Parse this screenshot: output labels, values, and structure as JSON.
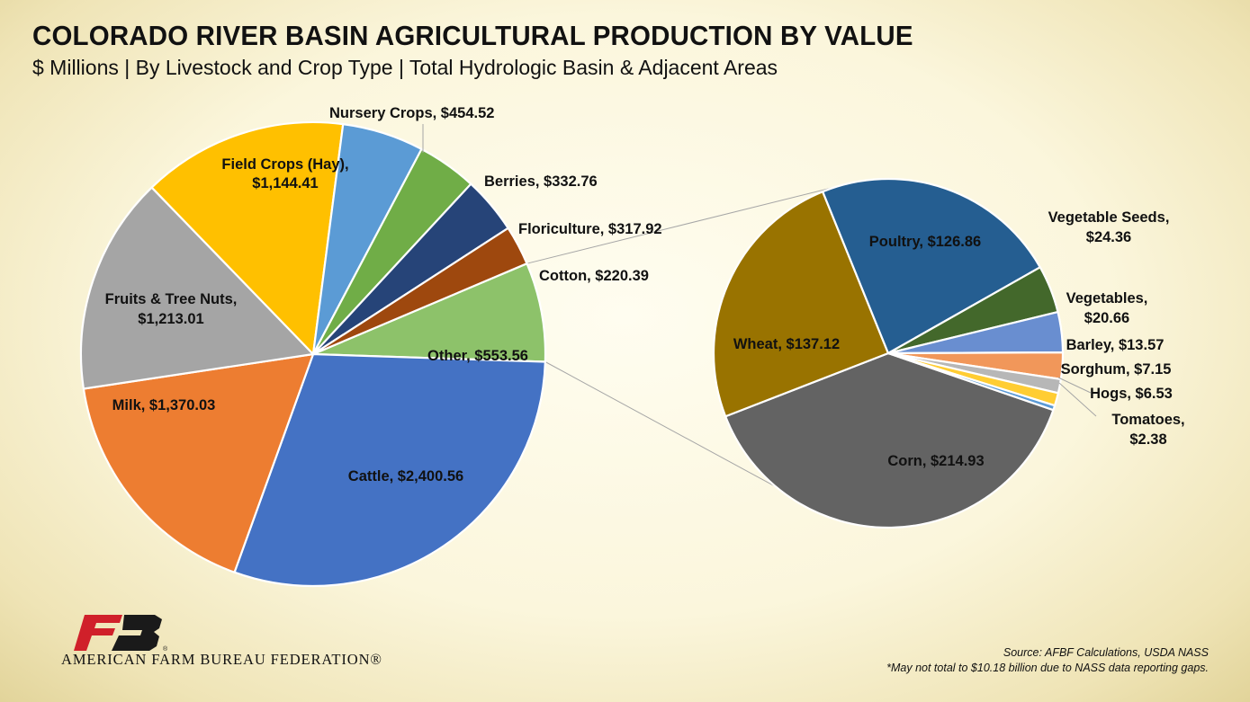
{
  "header": {
    "title": "COLORADO RIVER BASIN AGRICULTURAL PRODUCTION BY VALUE",
    "subtitle": "$ Millions | By Livestock and Crop Type | Total Hydrologic Basin & Adjacent Areas"
  },
  "chart_data": [
    {
      "type": "pie",
      "title": "",
      "label_format": "Name,  $Value",
      "slices": [
        {
          "name": "Other",
          "value": 553.56,
          "color": "#8dc26a"
        },
        {
          "name": "Cattle",
          "value": 2400.56,
          "color": "#4472c4"
        },
        {
          "name": "Milk",
          "value": 1370.03,
          "color": "#ed7d31"
        },
        {
          "name": "Fruits & Tree Nuts",
          "value": 1213.01,
          "color": "#a5a5a5"
        },
        {
          "name": "Field Crops (Hay)",
          "value": 1144.41,
          "color": "#ffc000"
        },
        {
          "name": "Nursery Crops",
          "value": 454.52,
          "color": "#5b9bd5"
        },
        {
          "name": "Berries",
          "value": 332.76,
          "color": "#70ad47"
        },
        {
          "name": "Floriculture",
          "value": 317.92,
          "color": "#264478"
        },
        {
          "name": "Cotton",
          "value": 220.39,
          "color": "#9e480e"
        }
      ],
      "labels": [
        {
          "line1": "Other,  $553.56",
          "line2": ""
        },
        {
          "line1": "Cattle,  $2,400.56",
          "line2": ""
        },
        {
          "line1": "Milk,  $1,370.03",
          "line2": ""
        },
        {
          "line1": "Fruits & Tree Nuts,",
          "line2": "$1,213.01"
        },
        {
          "line1": "Field Crops (Hay),",
          "line2": "$1,144.41"
        },
        {
          "line1": "Nursery Crops,  $454.52",
          "line2": ""
        },
        {
          "line1": "Berries,  $332.76",
          "line2": ""
        },
        {
          "line1": "Floriculture,  $317.92",
          "line2": ""
        },
        {
          "line1": "Cotton,  $220.39",
          "line2": ""
        }
      ]
    },
    {
      "type": "pie",
      "title": "",
      "breakdown_of": "Other",
      "slices": [
        {
          "name": "Corn",
          "value": 214.93,
          "color": "#636363"
        },
        {
          "name": "Wheat",
          "value": 137.12,
          "color": "#997300"
        },
        {
          "name": "Poultry",
          "value": 126.86,
          "color": "#255e91"
        },
        {
          "name": "Vegetable Seeds",
          "value": 24.36,
          "color": "#43682b"
        },
        {
          "name": "Vegetables",
          "value": 20.66,
          "color": "#698ed0"
        },
        {
          "name": "Barley",
          "value": 13.57,
          "color": "#f1975a"
        },
        {
          "name": "Sorghum",
          "value": 7.15,
          "color": "#b7b7b7"
        },
        {
          "name": "Hogs",
          "value": 6.53,
          "color": "#ffcd33"
        },
        {
          "name": "Tomatoes",
          "value": 2.38,
          "color": "#5a9ad6"
        }
      ],
      "labels": [
        {
          "line1": "Corn,  $214.93",
          "line2": ""
        },
        {
          "line1": "Wheat,  $137.12",
          "line2": ""
        },
        {
          "line1": "Poultry,  $126.86",
          "line2": ""
        },
        {
          "line1": "Vegetable Seeds,",
          "line2": "$24.36"
        },
        {
          "line1": "Vegetables,",
          "line2": "$20.66"
        },
        {
          "line1": "Barley,  $13.57",
          "line2": ""
        },
        {
          "line1": "Sorghum,  $7.15",
          "line2": ""
        },
        {
          "line1": "Hogs,  $6.53",
          "line2": ""
        },
        {
          "line1": "Tomatoes,",
          "line2": "$2.38"
        }
      ]
    }
  ],
  "footer": {
    "logo_mark": "FB",
    "logo_text": "AMERICAN FARM BUREAU FEDERATION®",
    "source": "Source: AFBF Calculations, USDA NASS",
    "note": "*May not total to $10.18 billion due to NASS data reporting gaps."
  },
  "colors": {
    "logo_red": "#d0202a",
    "logo_black": "#1a1a1a"
  }
}
